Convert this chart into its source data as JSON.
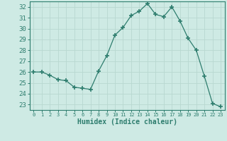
{
  "x": [
    0,
    1,
    2,
    3,
    4,
    5,
    6,
    7,
    8,
    9,
    10,
    11,
    12,
    13,
    14,
    15,
    16,
    17,
    18,
    19,
    20,
    21,
    22,
    23
  ],
  "y": [
    26.0,
    26.0,
    25.7,
    25.3,
    25.2,
    24.6,
    24.5,
    24.4,
    26.1,
    27.5,
    29.4,
    30.1,
    31.2,
    31.6,
    32.3,
    31.3,
    31.1,
    32.0,
    30.7,
    29.1,
    28.0,
    25.6,
    23.1,
    22.8
  ],
  "line_color": "#2e7d6e",
  "marker": "+",
  "marker_size": 4,
  "marker_lw": 1.2,
  "bg_color": "#ceeae4",
  "grid_color": "#b8d8d0",
  "xlabel": "Humidex (Indice chaleur)",
  "ylabel_ticks": [
    23,
    24,
    25,
    26,
    27,
    28,
    29,
    30,
    31,
    32
  ],
  "xlim": [
    -0.5,
    23.5
  ],
  "ylim": [
    22.5,
    32.5
  ],
  "xtick_labels": [
    "0",
    "1",
    "2",
    "3",
    "4",
    "5",
    "6",
    "7",
    "8",
    "9",
    "10",
    "11",
    "12",
    "13",
    "14",
    "15",
    "16",
    "17",
    "18",
    "19",
    "20",
    "21",
    "22",
    "23"
  ]
}
